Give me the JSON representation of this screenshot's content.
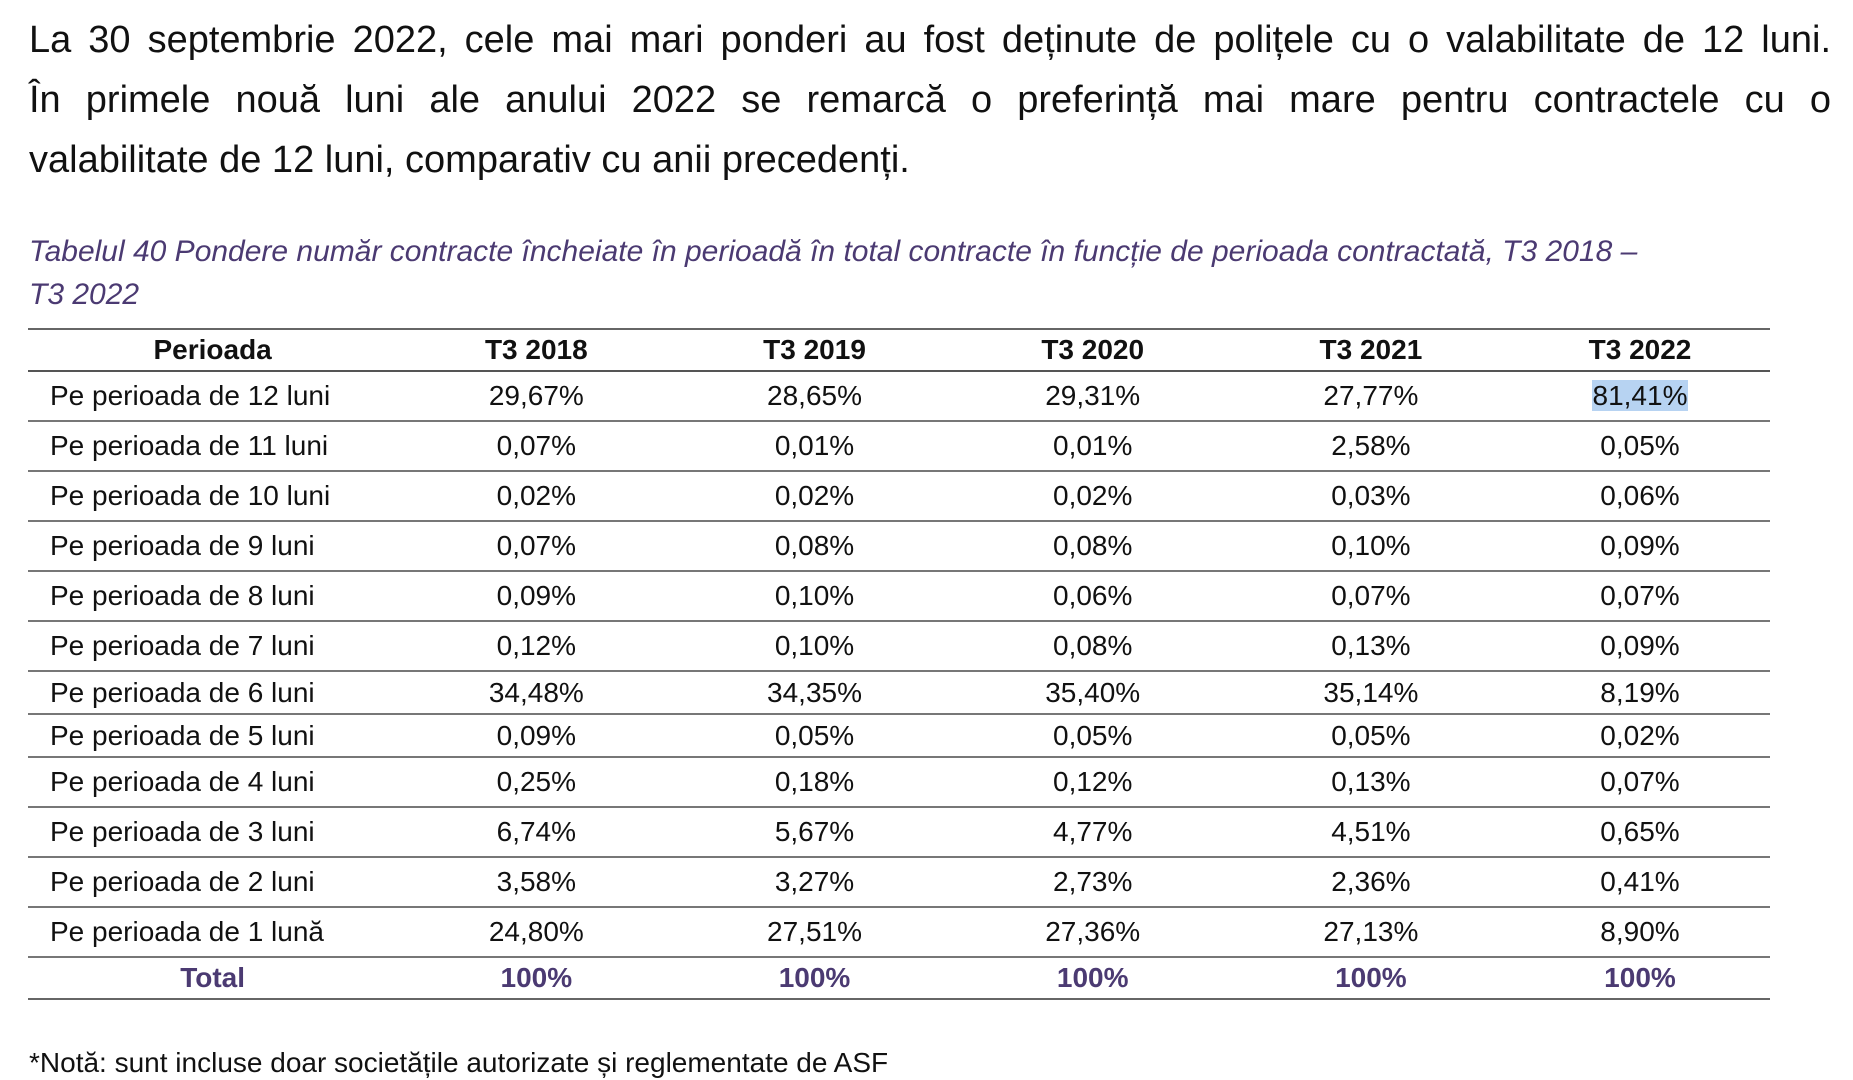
{
  "paragraph": {
    "line1": "La 30 septembrie 2022, cele mai mari ponderi au fost deținute de polițele cu o valabilitate de 12 luni.",
    "line2": "În primele nouă luni ale anului 2022 se remarcă o preferință mai mare pentru contractele cu o",
    "line3": "valabilitate de 12 luni, comparativ cu anii precedenți."
  },
  "caption": {
    "line1": "Tabelul 40 Pondere număr contracte încheiate în perioadă în total contracte în funcție de perioada contractată, T3 2018 –",
    "line2": "T3 2022"
  },
  "table": {
    "headers": [
      "Perioada",
      "T3 2018",
      "T3 2019",
      "T3 2020",
      "T3 2021",
      "T3 2022"
    ],
    "rows": [
      [
        "Pe perioada de 12 luni",
        "29,67%",
        "28,65%",
        "29,31%",
        "27,77%",
        "81,41%"
      ],
      [
        "Pe perioada de 11 luni",
        "0,07%",
        "0,01%",
        "0,01%",
        "2,58%",
        "0,05%"
      ],
      [
        "Pe perioada de 10 luni",
        "0,02%",
        "0,02%",
        "0,02%",
        "0,03%",
        "0,06%"
      ],
      [
        "Pe perioada de 9 luni",
        "0,07%",
        "0,08%",
        "0,08%",
        "0,10%",
        "0,09%"
      ],
      [
        "Pe perioada de 8 luni",
        "0,09%",
        "0,10%",
        "0,06%",
        "0,07%",
        "0,07%"
      ],
      [
        "Pe perioada de 7 luni",
        "0,12%",
        "0,10%",
        "0,08%",
        "0,13%",
        "0,09%"
      ],
      [
        "Pe perioada de 6 luni",
        "34,48%",
        "34,35%",
        "35,40%",
        "35,14%",
        "8,19%"
      ],
      [
        "Pe perioada de 5 luni",
        "0,09%",
        "0,05%",
        "0,05%",
        "0,05%",
        "0,02%"
      ],
      [
        "Pe perioada de 4 luni",
        "0,25%",
        "0,18%",
        "0,12%",
        "0,13%",
        "0,07%"
      ],
      [
        "Pe perioada de 3 luni",
        "6,74%",
        "5,67%",
        "4,77%",
        "4,51%",
        "0,65%"
      ],
      [
        "Pe perioada de 2 luni",
        "3,58%",
        "3,27%",
        "2,73%",
        "2,36%",
        "0,41%"
      ],
      [
        "Pe perioada de 1 lună",
        "24,80%",
        "27,51%",
        "27,36%",
        "27,13%",
        "8,90%"
      ]
    ],
    "total": [
      "Total",
      "100%",
      "100%",
      "100%",
      "100%",
      "100%"
    ]
  },
  "note": "*Notă: sunt incluse doar societățile autorizate și reglementate de ASF",
  "colors": {
    "caption": "#4b3a72",
    "total_row": "#4b3a72",
    "selection_highlight": "#b7d3f2"
  }
}
